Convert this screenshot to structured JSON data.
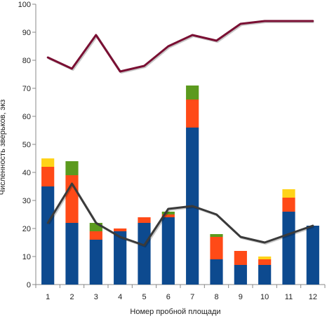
{
  "chart_data": {
    "type": "bar",
    "stacked": true,
    "xlabel": "Номер пробной площади",
    "ylabel": "Численность зверьков, экз",
    "categories": [
      "1",
      "2",
      "3",
      "4",
      "5",
      "6",
      "7",
      "8",
      "9",
      "10",
      "11",
      "12"
    ],
    "ylim": [
      0,
      100
    ],
    "yticks": [
      "0",
      "10",
      "20",
      "30",
      "40",
      "50",
      "60",
      "70",
      "80",
      "90",
      "100"
    ],
    "grid": false,
    "legend": "none",
    "series": [
      {
        "kind": "bar",
        "color": "#0d4a8f",
        "values": [
          35,
          22,
          16,
          19,
          22,
          24,
          56,
          9,
          7,
          7,
          26,
          21
        ]
      },
      {
        "kind": "bar",
        "color": "#ff4a17",
        "values": [
          7,
          17,
          3,
          1,
          2,
          1,
          10,
          8,
          5,
          2,
          5,
          0
        ]
      },
      {
        "kind": "bar",
        "color": "#5b9a1e",
        "values": [
          0,
          5,
          3,
          0,
          0,
          1,
          5,
          1,
          0,
          0,
          0,
          0
        ]
      },
      {
        "kind": "bar",
        "color": "#ffd319",
        "values": [
          3,
          0,
          0,
          0,
          0,
          0,
          0,
          0,
          0,
          1,
          3,
          0
        ]
      },
      {
        "kind": "line",
        "color": "#3a3a3a",
        "values": [
          22,
          36,
          22,
          17,
          14,
          27,
          28,
          25,
          17,
          15,
          18,
          21
        ]
      },
      {
        "kind": "line",
        "color": "#7a0f33",
        "values": [
          81,
          77,
          89,
          76,
          78,
          85,
          89,
          87,
          93,
          94,
          94,
          94
        ]
      }
    ]
  }
}
